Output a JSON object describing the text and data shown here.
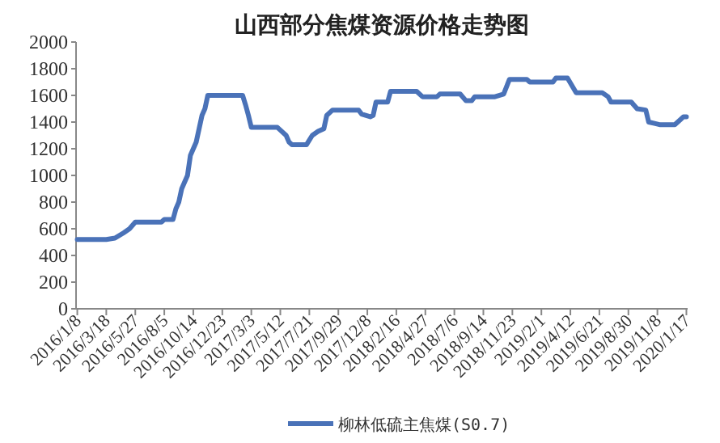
{
  "chart_data": {
    "type": "line",
    "title": "山西部分焦煤资源价格走势图",
    "x": [
      "2016-01-08",
      "2016-03-18",
      "2016-04-08",
      "2016-04-29",
      "2016-05-13",
      "2016-05-27",
      "2016-07-29",
      "2016-08-05",
      "2016-08-26",
      "2016-09-02",
      "2016-09-09",
      "2016-09-16",
      "2016-09-30",
      "2016-10-07",
      "2016-10-21",
      "2016-11-04",
      "2016-11-11",
      "2016-11-18",
      "2017-02-10",
      "2017-02-17",
      "2017-02-24",
      "2017-03-03",
      "2017-05-05",
      "2017-05-26",
      "2017-06-02",
      "2017-06-09",
      "2017-07-14",
      "2017-07-28",
      "2017-08-11",
      "2017-08-25",
      "2017-09-01",
      "2017-09-15",
      "2017-11-17",
      "2017-11-24",
      "2017-12-15",
      "2017-12-22",
      "2017-12-29",
      "2018-01-26",
      "2018-02-02",
      "2018-04-06",
      "2018-04-20",
      "2018-05-25",
      "2018-06-01",
      "2018-07-20",
      "2018-08-03",
      "2018-08-17",
      "2018-08-24",
      "2018-10-12",
      "2018-11-02",
      "2018-11-16",
      "2018-12-28",
      "2019-01-04",
      "2019-03-01",
      "2019-03-08",
      "2019-04-05",
      "2019-04-26",
      "2019-06-28",
      "2019-07-12",
      "2019-07-19",
      "2019-09-06",
      "2019-09-20",
      "2019-10-11",
      "2019-10-18",
      "2019-11-01",
      "2019-11-15",
      "2019-12-20",
      "2020-01-03",
      "2020-01-10",
      "2020-01-17"
    ],
    "series": [
      {
        "name": "柳林低硫主焦煤(S0.7)",
        "color": "#4a72b8",
        "values": [
          520,
          520,
          530,
          570,
          600,
          650,
          650,
          670,
          670,
          750,
          800,
          900,
          1000,
          1150,
          1250,
          1450,
          1500,
          1600,
          1600,
          1530,
          1450,
          1360,
          1360,
          1300,
          1250,
          1230,
          1230,
          1300,
          1330,
          1350,
          1450,
          1490,
          1490,
          1460,
          1440,
          1450,
          1550,
          1550,
          1630,
          1630,
          1590,
          1590,
          1610,
          1610,
          1560,
          1560,
          1590,
          1590,
          1610,
          1720,
          1720,
          1700,
          1700,
          1730,
          1730,
          1620,
          1620,
          1590,
          1550,
          1550,
          1500,
          1490,
          1400,
          1390,
          1380,
          1380,
          1420,
          1440,
          1440
        ]
      }
    ],
    "xlim": [
      "2016-01-05",
      "2020-01-20"
    ],
    "xticks": [
      {
        "value": "2016-01-08",
        "label": "2016/1/8"
      },
      {
        "value": "2016-03-18",
        "label": "2016/3/18"
      },
      {
        "value": "2016-05-27",
        "label": "2016/5/27"
      },
      {
        "value": "2016-08-05",
        "label": "2016/8/5"
      },
      {
        "value": "2016-10-14",
        "label": "2016/10/14"
      },
      {
        "value": "2016-12-23",
        "label": "2016/12/23"
      },
      {
        "value": "2017-03-03",
        "label": "2017/3/3"
      },
      {
        "value": "2017-05-12",
        "label": "2017/5/12"
      },
      {
        "value": "2017-07-21",
        "label": "2017/7/21"
      },
      {
        "value": "2017-09-29",
        "label": "2017/9/29"
      },
      {
        "value": "2017-12-08",
        "label": "2017/12/8"
      },
      {
        "value": "2018-02-16",
        "label": "2018/2/16"
      },
      {
        "value": "2018-04-27",
        "label": "2018/4/27"
      },
      {
        "value": "2018-07-06",
        "label": "2018/7/6"
      },
      {
        "value": "2018-09-14",
        "label": "2018/9/14"
      },
      {
        "value": "2018-11-23",
        "label": "2018/11/23"
      },
      {
        "value": "2019-02-01",
        "label": "2019/2/1"
      },
      {
        "value": "2019-04-12",
        "label": "2019/4/12"
      },
      {
        "value": "2019-06-21",
        "label": "2019/6/21"
      },
      {
        "value": "2019-08-30",
        "label": "2019/8/30"
      },
      {
        "value": "2019-11-08",
        "label": "2019/11/8"
      },
      {
        "value": "2020-01-17",
        "label": "2020/1/17"
      }
    ],
    "ylim": [
      0,
      2000
    ],
    "yticks": [
      0,
      200,
      400,
      600,
      800,
      1000,
      1200,
      1400,
      1600,
      1800,
      2000
    ],
    "grid": false,
    "legend": "bottom",
    "marker": "none",
    "line_style": "solid"
  }
}
